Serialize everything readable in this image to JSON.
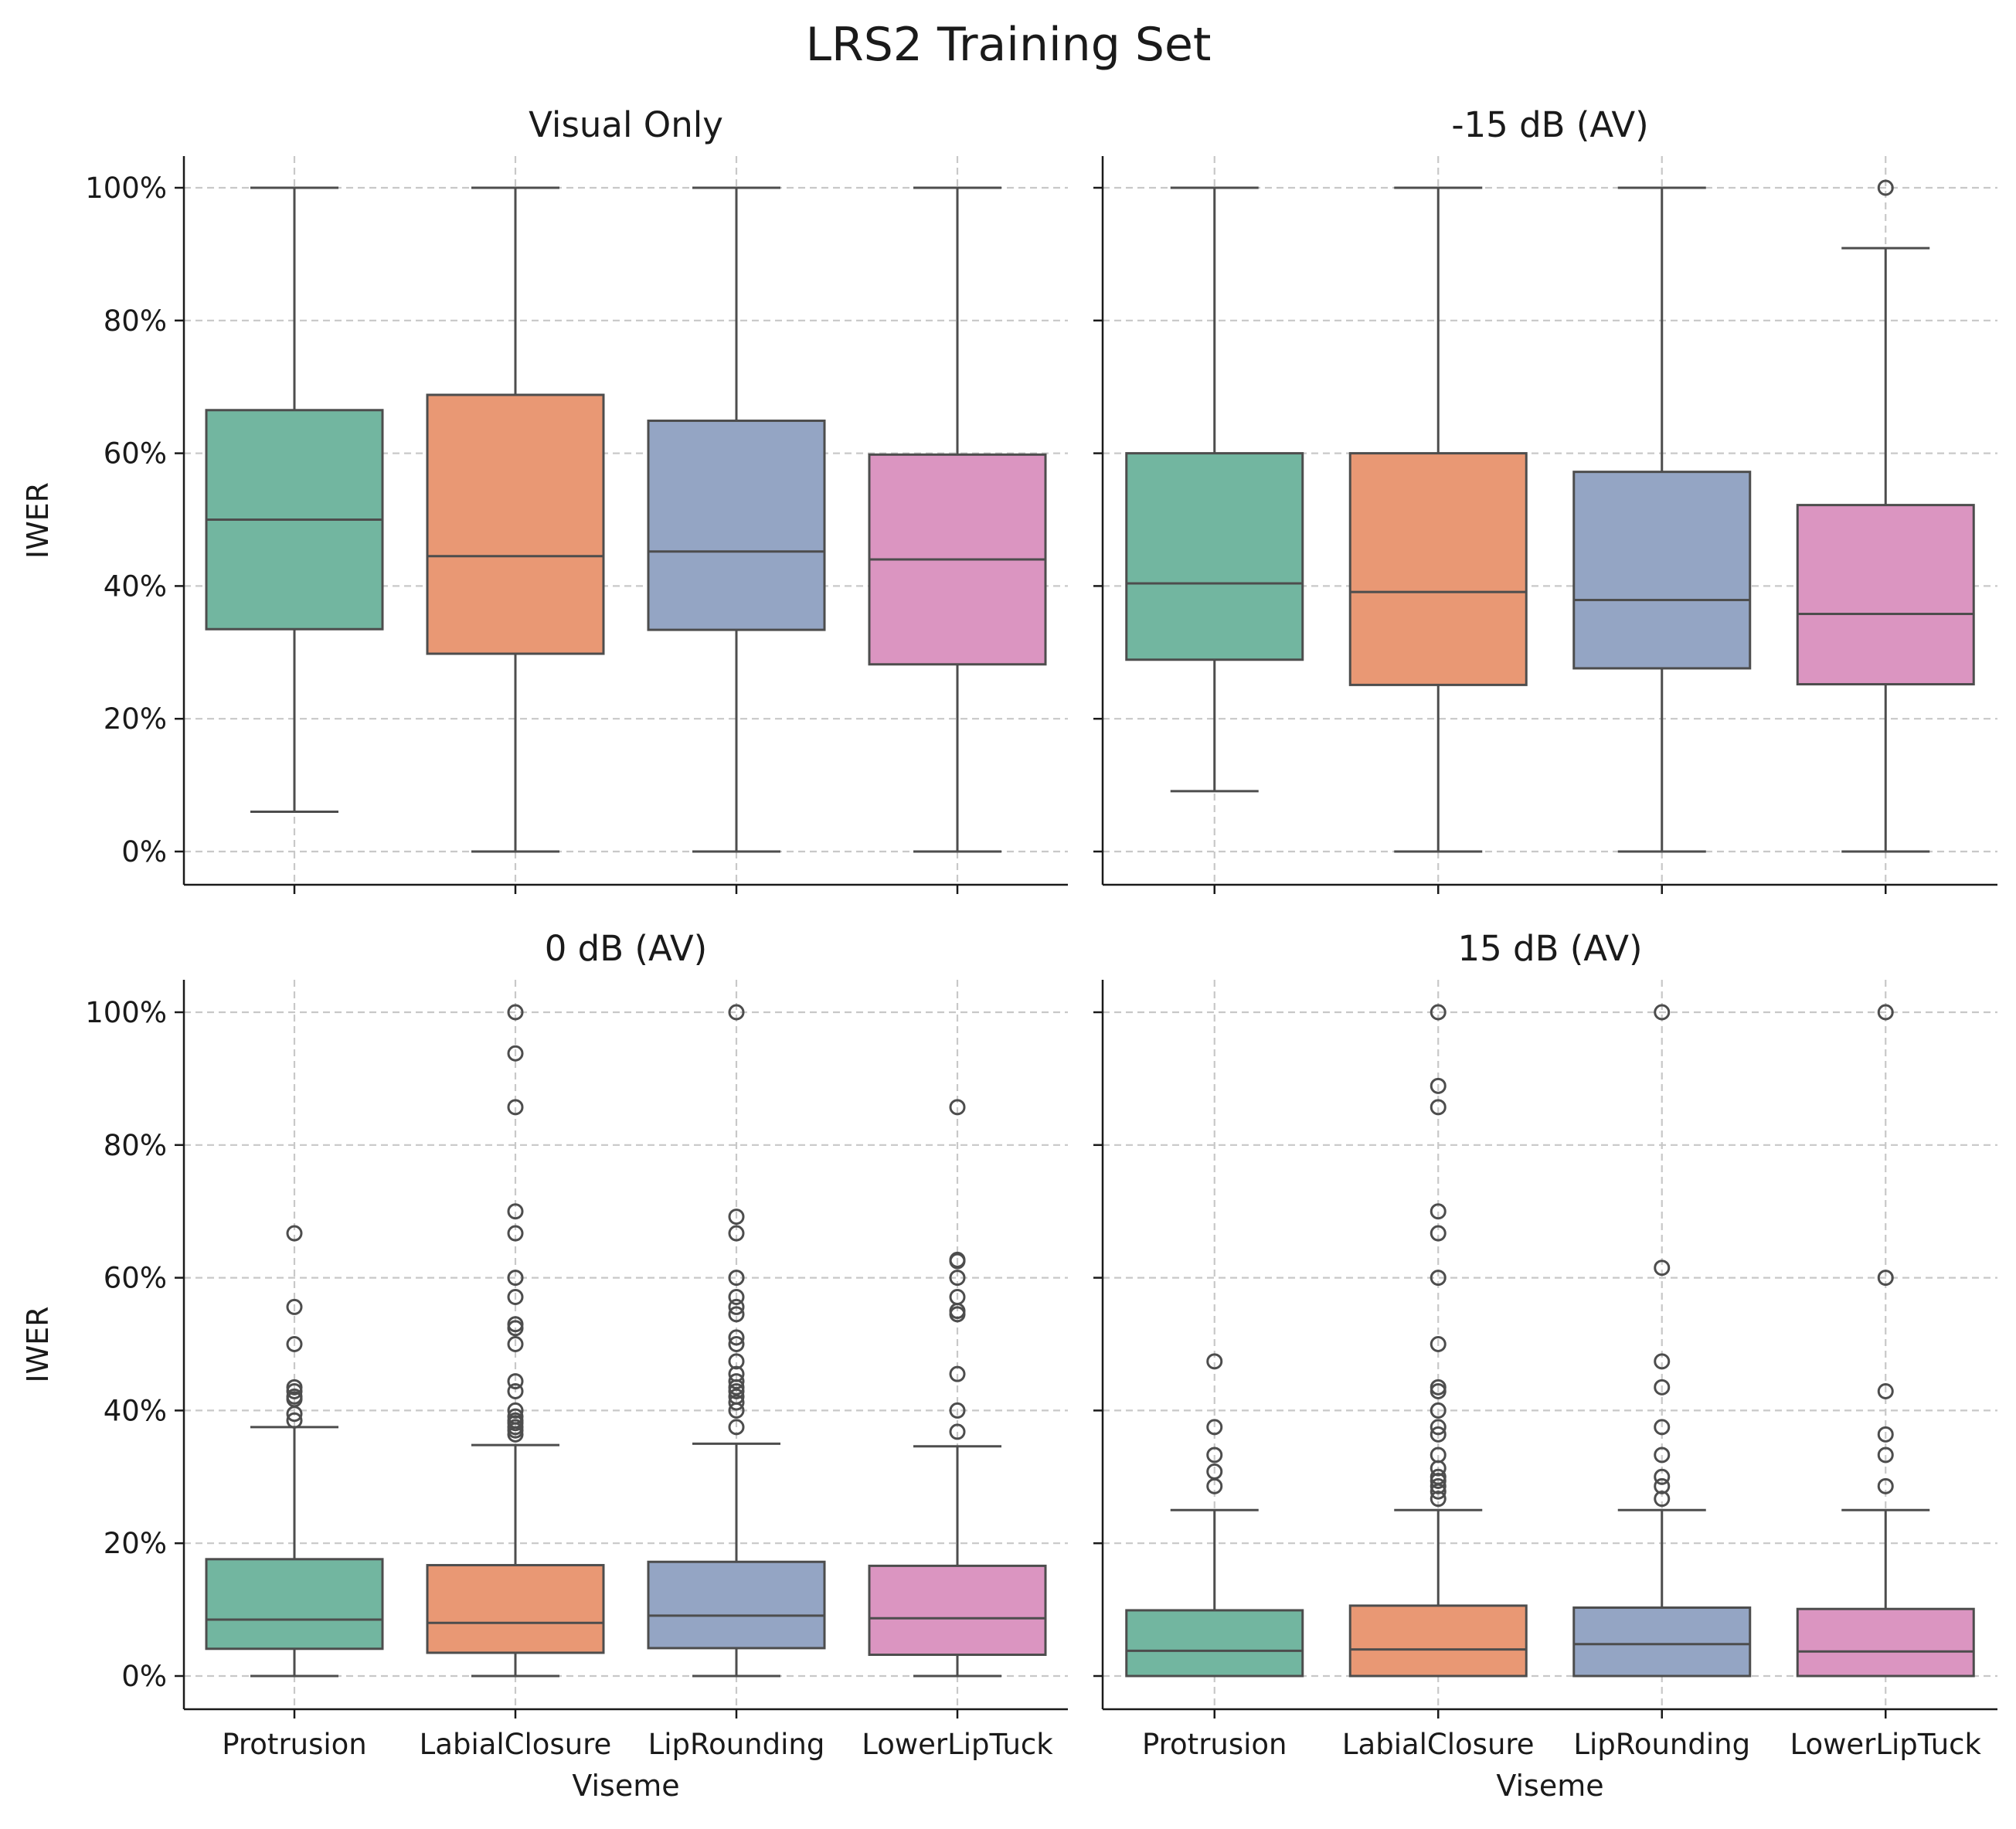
{
  "title": "LRS2 Training Set",
  "chart_data": {
    "type": "box",
    "title": "LRS2 Training Set",
    "categories": [
      "Protrusion",
      "LabialClosure",
      "LipRounding",
      "LowerLipTuck"
    ],
    "category_colors": [
      "#72b6a0",
      "#e99874",
      "#94a5c4",
      "#db95c1"
    ],
    "xlabel": "Viseme",
    "ylabel": "IWER",
    "ylim": [
      -5,
      105
    ],
    "yticks": [
      0,
      20,
      40,
      60,
      80,
      100
    ],
    "ytick_labels": [
      "0%",
      "20%",
      "40%",
      "60%",
      "80%",
      "100%"
    ],
    "grid": true,
    "panels": [
      {
        "title": "Visual Only",
        "boxes": [
          {
            "q1": 33.5,
            "median": 50.0,
            "q3": 66.5,
            "whisker_low": 6.0,
            "whisker_high": 100.0,
            "outliers": []
          },
          {
            "q1": 29.8,
            "median": 44.5,
            "q3": 68.8,
            "whisker_low": 0.0,
            "whisker_high": 100.0,
            "outliers": []
          },
          {
            "q1": 33.4,
            "median": 45.2,
            "q3": 64.9,
            "whisker_low": 0.0,
            "whisker_high": 100.0,
            "outliers": []
          },
          {
            "q1": 28.2,
            "median": 44.0,
            "q3": 59.8,
            "whisker_low": 0.0,
            "whisker_high": 100.0,
            "outliers": []
          }
        ]
      },
      {
        "title": "-15 dB (AV)",
        "boxes": [
          {
            "q1": 28.9,
            "median": 40.4,
            "q3": 60.0,
            "whisker_low": 9.1,
            "whisker_high": 100.0,
            "outliers": []
          },
          {
            "q1": 25.1,
            "median": 39.1,
            "q3": 60.0,
            "whisker_low": 0.0,
            "whisker_high": 100.0,
            "outliers": []
          },
          {
            "q1": 27.6,
            "median": 37.9,
            "q3": 57.2,
            "whisker_low": 0.0,
            "whisker_high": 100.0,
            "outliers": []
          },
          {
            "q1": 25.2,
            "median": 35.8,
            "q3": 52.2,
            "whisker_low": 0.0,
            "whisker_high": 90.9,
            "outliers": [
              100.0
            ]
          }
        ]
      },
      {
        "title": "0 dB (AV)",
        "boxes": [
          {
            "q1": 4.1,
            "median": 8.5,
            "q3": 17.6,
            "whisker_low": 0.0,
            "whisker_high": 37.5,
            "outliers": [
              38.5,
              39.5,
              41.7,
              42.1,
              42.9,
              43.5,
              50.0,
              55.6,
              66.7
            ]
          },
          {
            "q1": 3.5,
            "median": 8.0,
            "q3": 16.7,
            "whisker_low": 0.0,
            "whisker_high": 34.8,
            "outliers": [
              36.4,
              37.0,
              37.5,
              38.1,
              38.5,
              39.1,
              40.0,
              42.9,
              44.4,
              50.0,
              52.4,
              53.0,
              57.1,
              60.0,
              66.7,
              70.0,
              85.7,
              93.8,
              100.0
            ]
          },
          {
            "q1": 4.2,
            "median": 9.1,
            "q3": 17.2,
            "whisker_low": 0.0,
            "whisker_high": 35.0,
            "outliers": [
              37.5,
              40.0,
              41.2,
              42.1,
              42.9,
              43.5,
              44.4,
              45.5,
              47.4,
              50.0,
              51.0,
              54.5,
              55.6,
              57.1,
              60.0,
              66.7,
              69.2,
              100.0
            ]
          },
          {
            "q1": 3.2,
            "median": 8.7,
            "q3": 16.6,
            "whisker_low": 0.0,
            "whisker_high": 34.6,
            "outliers": [
              36.8,
              40.0,
              45.5,
              54.5,
              55.0,
              57.1,
              60.0,
              62.5,
              62.7,
              85.7
            ]
          }
        ]
      },
      {
        "title": "15 dB (AV)",
        "boxes": [
          {
            "q1": 0.0,
            "median": 3.8,
            "q3": 9.9,
            "whisker_low": 0.0,
            "whisker_high": 25.0,
            "outliers": [
              28.6,
              30.8,
              33.3,
              37.5,
              47.4
            ]
          },
          {
            "q1": 0.0,
            "median": 4.0,
            "q3": 10.6,
            "whisker_low": 0.0,
            "whisker_high": 25.0,
            "outliers": [
              26.7,
              27.8,
              28.6,
              29.4,
              30.0,
              31.3,
              33.3,
              36.4,
              37.5,
              40.0,
              42.9,
              43.5,
              50.0,
              60.0,
              66.7,
              70.0,
              85.7,
              88.9,
              100.0
            ]
          },
          {
            "q1": 0.0,
            "median": 4.8,
            "q3": 10.3,
            "whisker_low": 0.0,
            "whisker_high": 25.0,
            "outliers": [
              26.7,
              28.6,
              30.0,
              33.3,
              37.5,
              43.5,
              47.4,
              61.5,
              100.0
            ]
          },
          {
            "q1": 0.0,
            "median": 3.7,
            "q3": 10.1,
            "whisker_low": 0.0,
            "whisker_high": 25.0,
            "outliers": [
              28.6,
              33.3,
              36.4,
              42.9,
              60.0,
              100.0
            ]
          }
        ]
      }
    ]
  }
}
